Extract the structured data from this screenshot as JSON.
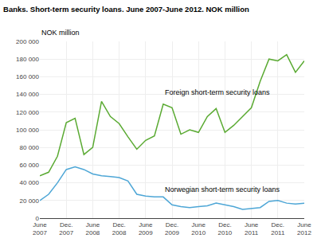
{
  "chart_data": {
    "type": "line",
    "title": "Banks. Short-term security loans. June 2007-June 2012. NOK million",
    "ylabel": "NOK million",
    "categories": [
      "June\n2007",
      null,
      null,
      "Dec.\n2007",
      null,
      null,
      "June\n2008",
      null,
      null,
      "Dec.\n2008",
      null,
      null,
      "June\n2009",
      null,
      null,
      "Dec.\n2009",
      null,
      null,
      "June\n2010",
      null,
      null,
      "Dec.\n2010",
      null,
      null,
      "June\n2011",
      null,
      null,
      "Dec.\n2011",
      null,
      null,
      "June\n2012"
    ],
    "series": [
      {
        "color": "#5aaa32",
        "values": [
          48000,
          52000,
          70000,
          108000,
          113000,
          72000,
          80000,
          132000,
          115000,
          107000,
          92000,
          78000,
          88000,
          93000,
          129000,
          125000,
          95000,
          100000,
          97000,
          115000,
          124000,
          97000,
          105000,
          115000,
          125000,
          155000,
          180000,
          178000,
          185000,
          165000,
          178000
        ]
      },
      {
        "color": "#4da6d6",
        "values": [
          20000,
          27000,
          40000,
          55000,
          58000,
          55000,
          50000,
          48000,
          47000,
          46000,
          42000,
          27000,
          25000,
          24000,
          24000,
          15000,
          13000,
          12000,
          13000,
          14000,
          17000,
          15000,
          13000,
          10000,
          11000,
          12000,
          19000,
          20000,
          17000,
          16000,
          17000
        ]
      }
    ],
    "ylim": [
      0,
      200000
    ],
    "yticks": [
      0,
      {
        "value": 20000,
        "label": "20 000"
      },
      {
        "value": 40000,
        "label": "40 000"
      },
      {
        "value": 60000,
        "label": "60 000"
      },
      {
        "value": 80000,
        "label": "80 000"
      },
      {
        "value": 100000,
        "label": "100 000"
      },
      {
        "value": 120000,
        "label": "120 000"
      },
      {
        "value": 140000,
        "label": "140 000"
      },
      {
        "value": 160000,
        "label": "160 000"
      },
      {
        "value": 180000,
        "label": "180 000"
      },
      {
        "value": 200000,
        "label": "200 000"
      }
    ],
    "grid": true,
    "annotations": [
      {
        "text": "Foreign short-term security loans",
        "x": 14,
        "y": 136000
      },
      {
        "text": "Norwegian short-term security loans",
        "x": 14,
        "y": 26000
      }
    ]
  }
}
